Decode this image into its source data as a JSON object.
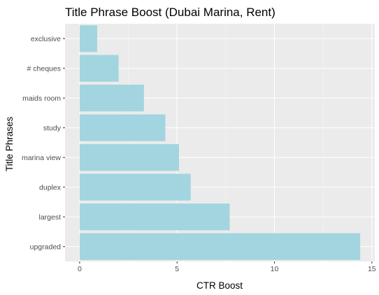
{
  "chart_data": {
    "type": "bar",
    "orientation": "horizontal",
    "title": "Title Phrase Boost (Dubai Marina, Rent)",
    "xlabel": "CTR Boost",
    "ylabel": "Title Phrases",
    "categories": [
      "exclusive",
      "# cheques",
      "maids room",
      "study",
      "marina view",
      "duplex",
      "largest",
      "upgraded"
    ],
    "values": [
      0.9,
      2.0,
      3.3,
      4.4,
      5.1,
      5.7,
      7.7,
      14.4
    ],
    "xlim": [
      -0.75,
      15.15
    ],
    "xticks": [
      0,
      5,
      10,
      15
    ],
    "xtick_labels": [
      "0",
      "5",
      "10",
      "15"
    ],
    "grid": true,
    "legend": "none",
    "colors": {
      "bar": "#a2d5e0",
      "panel": "#ebebeb",
      "grid_major": "#ffffff",
      "grid_minor": "#f5f5f5",
      "tick": "#333333"
    }
  }
}
